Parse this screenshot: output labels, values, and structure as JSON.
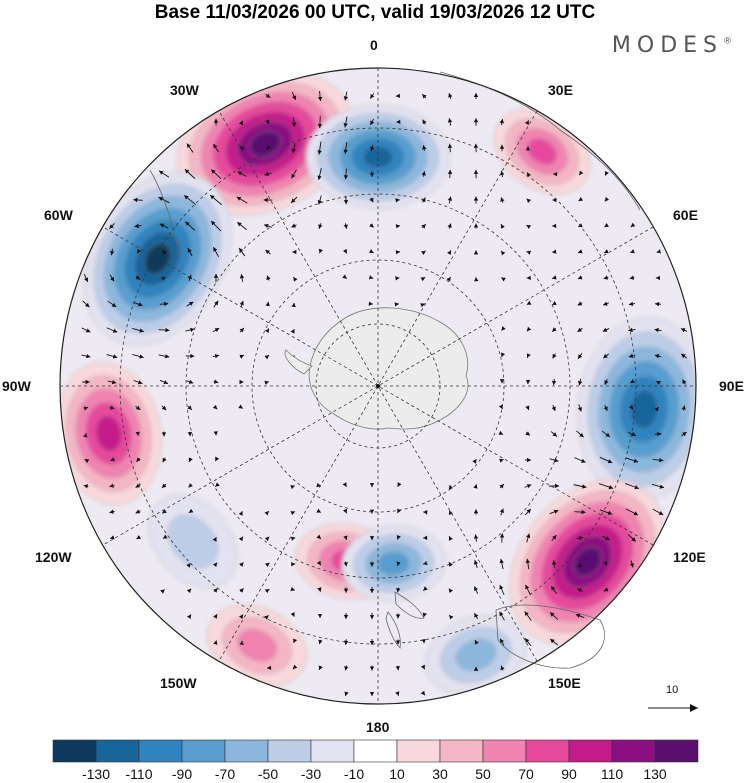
{
  "title": "Base 11/03/2026 00 UTC, valid 19/03/2026 12 UTC",
  "brand": "MODES",
  "brand_mark": "®",
  "longitude_labels": {
    "n0": "0",
    "e30": "30E",
    "e60": "60E",
    "e90": "90E",
    "e120": "120E",
    "e150": "150E",
    "s180": "180",
    "w150": "150W",
    "w120": "120W",
    "w90": "90W",
    "w60": "60W",
    "w30": "30W"
  },
  "vector_scale_label": "10",
  "colorbar": {
    "colors": [
      "#0d3a5c",
      "#16659b",
      "#2f84bf",
      "#579ecf",
      "#8bb7dd",
      "#bccde8",
      "#e2e2f0",
      "#ffffff",
      "#f8d8da",
      "#f4b5c4",
      "#f083b0",
      "#e6489c",
      "#c41a8a",
      "#8c0f82",
      "#5a0f6f"
    ],
    "labels": [
      "-130",
      "-110",
      "-90",
      "-70",
      "-50",
      "-30",
      "-10",
      "10",
      "30",
      "50",
      "70",
      "90",
      "110",
      "130"
    ]
  },
  "anomaly_centers": [
    {
      "lon": -25,
      "colat": 42,
      "value": 125
    },
    {
      "lon": -60,
      "colat": 40,
      "value": -130
    },
    {
      "lon": 0,
      "colat": 36,
      "value": -95
    },
    {
      "lon": 35,
      "colat": 45,
      "value": 55
    },
    {
      "lon": 95,
      "colat": 42,
      "value": -110
    },
    {
      "lon": 130,
      "colat": 43,
      "value": 130
    },
    {
      "lon": -100,
      "colat": 43,
      "value": 75
    },
    {
      "lon": -170,
      "colat": 28,
      "value": 60
    },
    {
      "lon": 175,
      "colat": 28,
      "value": -60
    },
    {
      "lon": -155,
      "colat": 45,
      "value": 45
    },
    {
      "lon": 160,
      "colat": 45,
      "value": -40
    },
    {
      "lon": -130,
      "colat": 38,
      "value": -25
    }
  ]
}
